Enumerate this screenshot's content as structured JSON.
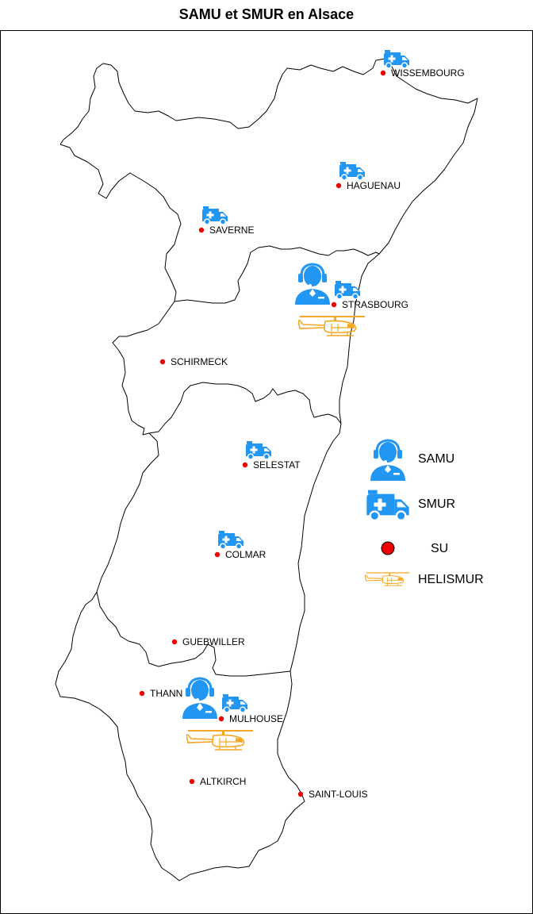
{
  "title": "SAMU et SMUR en Alsace",
  "colors": {
    "samu": "#2196f3",
    "smur": "#2196f3",
    "su": "#ee0000",
    "helismur": "#f5a623",
    "border": "#000000"
  },
  "icons": {
    "samu": "operator-headset-icon",
    "smur": "ambulance-icon",
    "su": "red-dot-icon",
    "helismur": "helicopter-icon"
  },
  "cities": [
    {
      "id": "wissembourg",
      "name": "WISSEMBOURG",
      "su": true,
      "smur": true
    },
    {
      "id": "haguenau",
      "name": "HAGUENAU",
      "su": true,
      "smur": true
    },
    {
      "id": "saverne",
      "name": "SAVERNE",
      "su": true,
      "smur": true
    },
    {
      "id": "strasbourg",
      "name": "STRASBOURG",
      "su": true,
      "smur": true,
      "samu": true,
      "helismur": true
    },
    {
      "id": "schirmeck",
      "name": "SCHIRMECK",
      "su": true
    },
    {
      "id": "selestat",
      "name": "SELESTAT",
      "su": true,
      "smur": true
    },
    {
      "id": "colmar",
      "name": "COLMAR",
      "su": true,
      "smur": true
    },
    {
      "id": "guebwiller",
      "name": "GUEBWILLER",
      "su": true
    },
    {
      "id": "thann",
      "name": "THANN",
      "su": true
    },
    {
      "id": "mulhouse",
      "name": "MULHOUSE",
      "su": true,
      "smur": true,
      "samu": true,
      "helismur": true
    },
    {
      "id": "altkirch",
      "name": "ALTKIRCH",
      "su": true
    },
    {
      "id": "saint-louis",
      "name": "SAINT-LOUIS",
      "su": true
    }
  ],
  "legend": {
    "samu": "SAMU",
    "smur": "SMUR",
    "su": "SU",
    "helismur": "HELISMUR"
  }
}
